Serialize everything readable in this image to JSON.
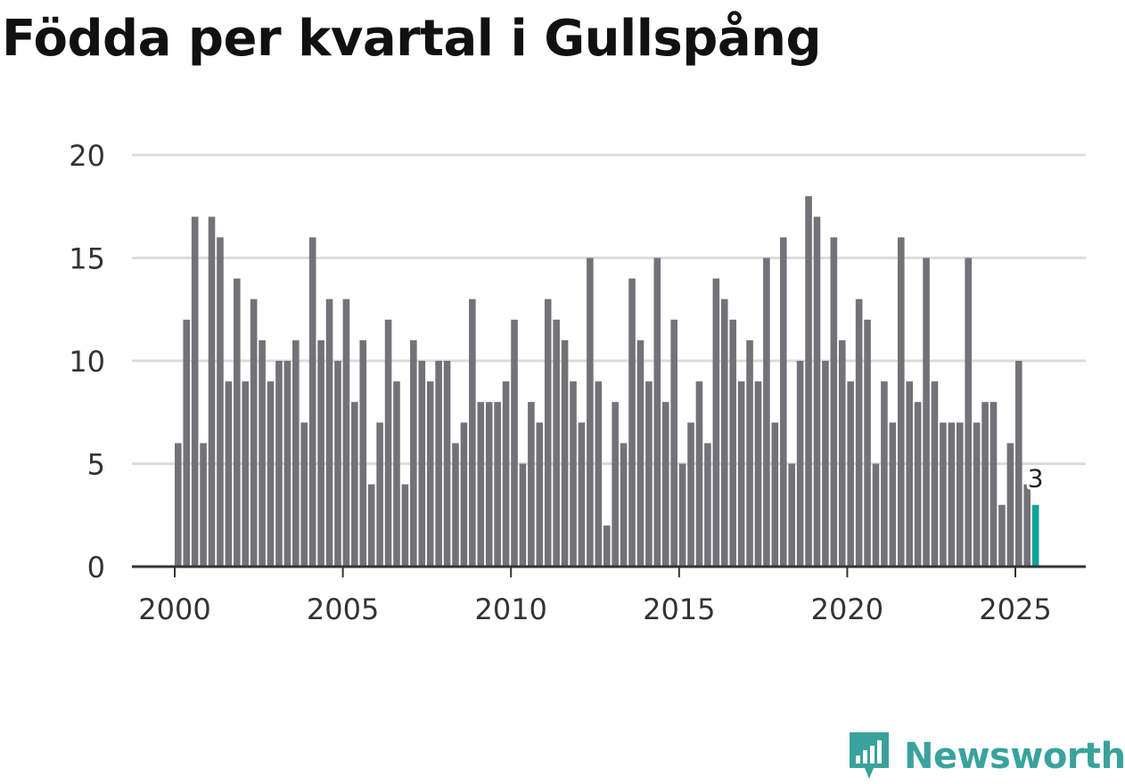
{
  "title": "Födda per kvartal i Gullspång",
  "brand": {
    "name": "Newsworthy",
    "logo_icon": "newsworthy-logo-icon",
    "color": "#3aa29c"
  },
  "chart_data": {
    "type": "bar",
    "title": "Födda per kvartal i Gullspång",
    "xlabel": "",
    "ylabel": "",
    "ylim": [
      0,
      20
    ],
    "yticks": [
      0,
      5,
      10,
      15,
      20
    ],
    "xticks": [
      "2000",
      "2005",
      "2010",
      "2015",
      "2020",
      "2025"
    ],
    "x_start_year": 2000,
    "periods_per_year": 4,
    "grid": true,
    "bar_color": "#737278",
    "highlight_color": "#0fa39a",
    "highlight_label": "3",
    "values": [
      6,
      12,
      17,
      6,
      17,
      16,
      9,
      14,
      9,
      13,
      11,
      9,
      10,
      10,
      11,
      7,
      16,
      11,
      13,
      10,
      13,
      8,
      11,
      4,
      7,
      12,
      9,
      4,
      11,
      10,
      9,
      10,
      10,
      6,
      7,
      13,
      8,
      8,
      8,
      9,
      12,
      5,
      8,
      7,
      13,
      12,
      11,
      9,
      7,
      15,
      9,
      2,
      8,
      6,
      14,
      11,
      9,
      15,
      8,
      12,
      5,
      7,
      9,
      6,
      14,
      13,
      12,
      9,
      11,
      9,
      15,
      7,
      16,
      5,
      10,
      18,
      17,
      10,
      16,
      11,
      9,
      13,
      12,
      5,
      9,
      7,
      16,
      9,
      8,
      15,
      9,
      7,
      7,
      7,
      15,
      7,
      8,
      8,
      3,
      6,
      10,
      4,
      3
    ]
  }
}
